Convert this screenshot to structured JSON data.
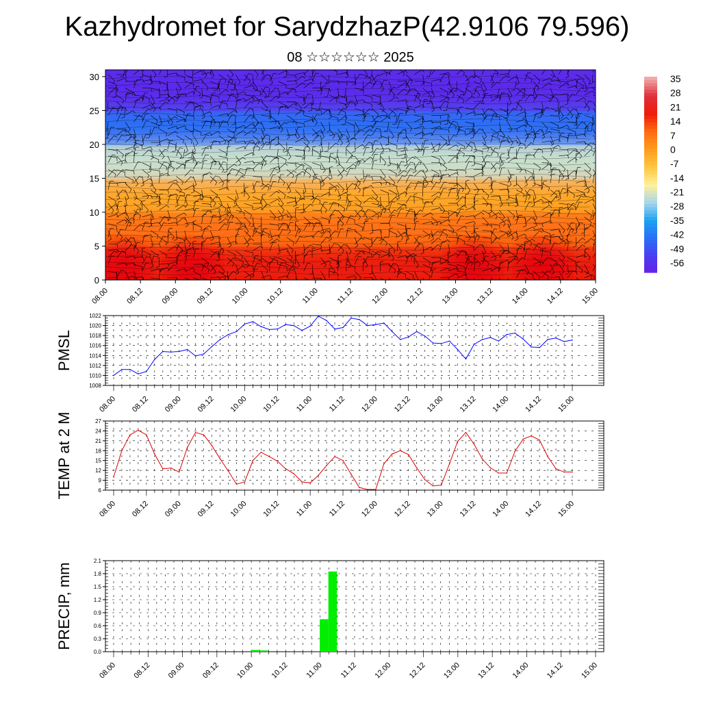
{
  "header": {
    "title": "Kazhydromet for SarydzhazP(42.9106 79.596)",
    "subtitle": "08 ☆☆☆☆☆☆ 2025"
  },
  "colors": {
    "pmsl_line": "#0000ff",
    "temp_line": "#dd0000",
    "precip_bar": "#00ee00",
    "grid": "#000000",
    "colorbar": [
      "#6a1fe6",
      "#4a3df2",
      "#2a6ef5",
      "#1aa2f2",
      "#a6d6ec",
      "#fff19a",
      "#ffc640",
      "#ff9c1e",
      "#ff6a10",
      "#ee1b0b",
      "#e0303a",
      "#f2a9a9"
    ]
  },
  "chart_data": [
    {
      "type": "heatmap",
      "title": "",
      "variable": "temperature with wind barbs",
      "xlabel": "",
      "ylabel": "",
      "x_ticks": [
        "08.00",
        "08.12",
        "09.00",
        "09.12",
        "10.00",
        "10.12",
        "11.00",
        "11.12",
        "12.00",
        "12.12",
        "13.00",
        "13.12",
        "14.00",
        "14.12",
        "15.00"
      ],
      "ylim": [
        0,
        31
      ],
      "y_ticks": [
        0,
        5,
        10,
        15,
        20,
        25,
        30
      ],
      "colorbar_ticks": [
        35,
        28,
        21,
        14,
        7,
        0,
        -7,
        -14,
        -21,
        -28,
        -35,
        -42,
        -49,
        -56
      ],
      "zones": [
        {
          "y_from": 0,
          "y_to": 5,
          "approx_temp": 21
        },
        {
          "y_from": 5,
          "y_to": 10,
          "approx_temp": 10
        },
        {
          "y_from": 10,
          "y_to": 15,
          "approx_temp": 0
        },
        {
          "y_from": 15,
          "y_to": 20,
          "approx_temp": -21
        },
        {
          "y_from": 20,
          "y_to": 25,
          "approx_temp": -42
        },
        {
          "y_from": 25,
          "y_to": 31,
          "approx_temp": -56
        }
      ],
      "warm_spots_x": [
        "08.06",
        "09.06",
        "13.06",
        "14.06"
      ]
    },
    {
      "type": "line",
      "title": "",
      "xlabel": "",
      "ylabel": "PMSL",
      "x_ticks": [
        "08.00",
        "08.12",
        "09.00",
        "09.12",
        "10.00",
        "10.12",
        "11.00",
        "11.12",
        "12.00",
        "12.12",
        "13.00",
        "13.12",
        "14.00",
        "14.12",
        "15.00"
      ],
      "ylim": [
        1008,
        1022
      ],
      "y_ticks": [
        1008,
        1010,
        1012,
        1014,
        1016,
        1018,
        1020,
        1022
      ],
      "x_step_hours": 3,
      "series": [
        {
          "values": [
            1010.0,
            1011.2,
            1011.2,
            1010.3,
            1010.8,
            1013.2,
            1014.8,
            1014.7,
            1014.8,
            1015.2,
            1013.9,
            1014.3,
            1015.8,
            1017.2,
            1018.2,
            1018.8,
            1020.3,
            1020.8,
            1019.8,
            1019.2,
            1019.3,
            1020.2,
            1020.0,
            1019.0,
            1019.9,
            1021.9,
            1021.0,
            1019.3,
            1019.6,
            1021.5,
            1021.2,
            1020.0,
            1020.2,
            1020.5,
            1018.8,
            1017.2,
            1017.7,
            1018.8,
            1017.9,
            1016.5,
            1016.4,
            1016.9,
            1015.2,
            1013.3,
            1016.2,
            1017.2,
            1017.6,
            1016.9,
            1018.2,
            1018.5,
            1017.3,
            1015.7,
            1015.6,
            1017.2,
            1017.5,
            1016.8,
            1017.1
          ]
        }
      ]
    },
    {
      "type": "line",
      "title": "",
      "xlabel": "",
      "ylabel": "TEMP at 2 M",
      "x_ticks": [
        "08.00",
        "08.12",
        "09.00",
        "09.12",
        "10.00",
        "10.12",
        "11.00",
        "11.12",
        "12.00",
        "12.12",
        "13.00",
        "13.12",
        "14.00",
        "14.12",
        "15.00"
      ],
      "ylim": [
        6,
        27
      ],
      "y_ticks": [
        6,
        9,
        12,
        15,
        18,
        21,
        24,
        27
      ],
      "x_step_hours": 3,
      "series": [
        {
          "values": [
            10.0,
            18.0,
            22.8,
            24.2,
            22.8,
            17.0,
            12.5,
            12.7,
            11.5,
            19.0,
            23.5,
            22.8,
            19.5,
            15.5,
            11.8,
            7.8,
            8.5,
            15.0,
            17.5,
            16.2,
            14.8,
            12.5,
            11.0,
            8.5,
            8.2,
            10.5,
            13.5,
            16.2,
            15.0,
            10.8,
            6.8,
            6.2,
            6.2,
            14.0,
            17.0,
            18.0,
            16.8,
            12.8,
            9.2,
            7.3,
            7.5,
            14.0,
            20.8,
            23.5,
            20.0,
            15.5,
            12.8,
            11.2,
            11.2,
            17.8,
            21.5,
            22.5,
            21.2,
            16.2,
            12.5,
            11.5,
            11.5
          ]
        }
      ]
    },
    {
      "type": "bar",
      "title": "",
      "xlabel": "",
      "ylabel": "PRECIP, mm",
      "x_ticks": [
        "08.00",
        "08.12",
        "09.00",
        "09.12",
        "10.00",
        "10.12",
        "11.00",
        "11.12",
        "12.00",
        "12.12",
        "13.00",
        "13.12",
        "14.00",
        "14.12",
        "15.00"
      ],
      "ylim": [
        0,
        2.1
      ],
      "y_ticks": [
        "0.0",
        "0.3",
        "0.6",
        "0.9",
        "1.2",
        "1.5",
        "1.8",
        "2.1"
      ],
      "x_step_hours": 3,
      "values": [
        0,
        0,
        0,
        0,
        0,
        0,
        0,
        0,
        0,
        0,
        0,
        0,
        0,
        0,
        0,
        0,
        0.04,
        0.03,
        0,
        0,
        0,
        0,
        0,
        0,
        0.75,
        1.85,
        0,
        0,
        0,
        0,
        0,
        0,
        0,
        0,
        0,
        0,
        0,
        0,
        0,
        0,
        0,
        0,
        0,
        0,
        0,
        0,
        0,
        0,
        0,
        0,
        0,
        0,
        0,
        0,
        0,
        0
      ]
    }
  ]
}
